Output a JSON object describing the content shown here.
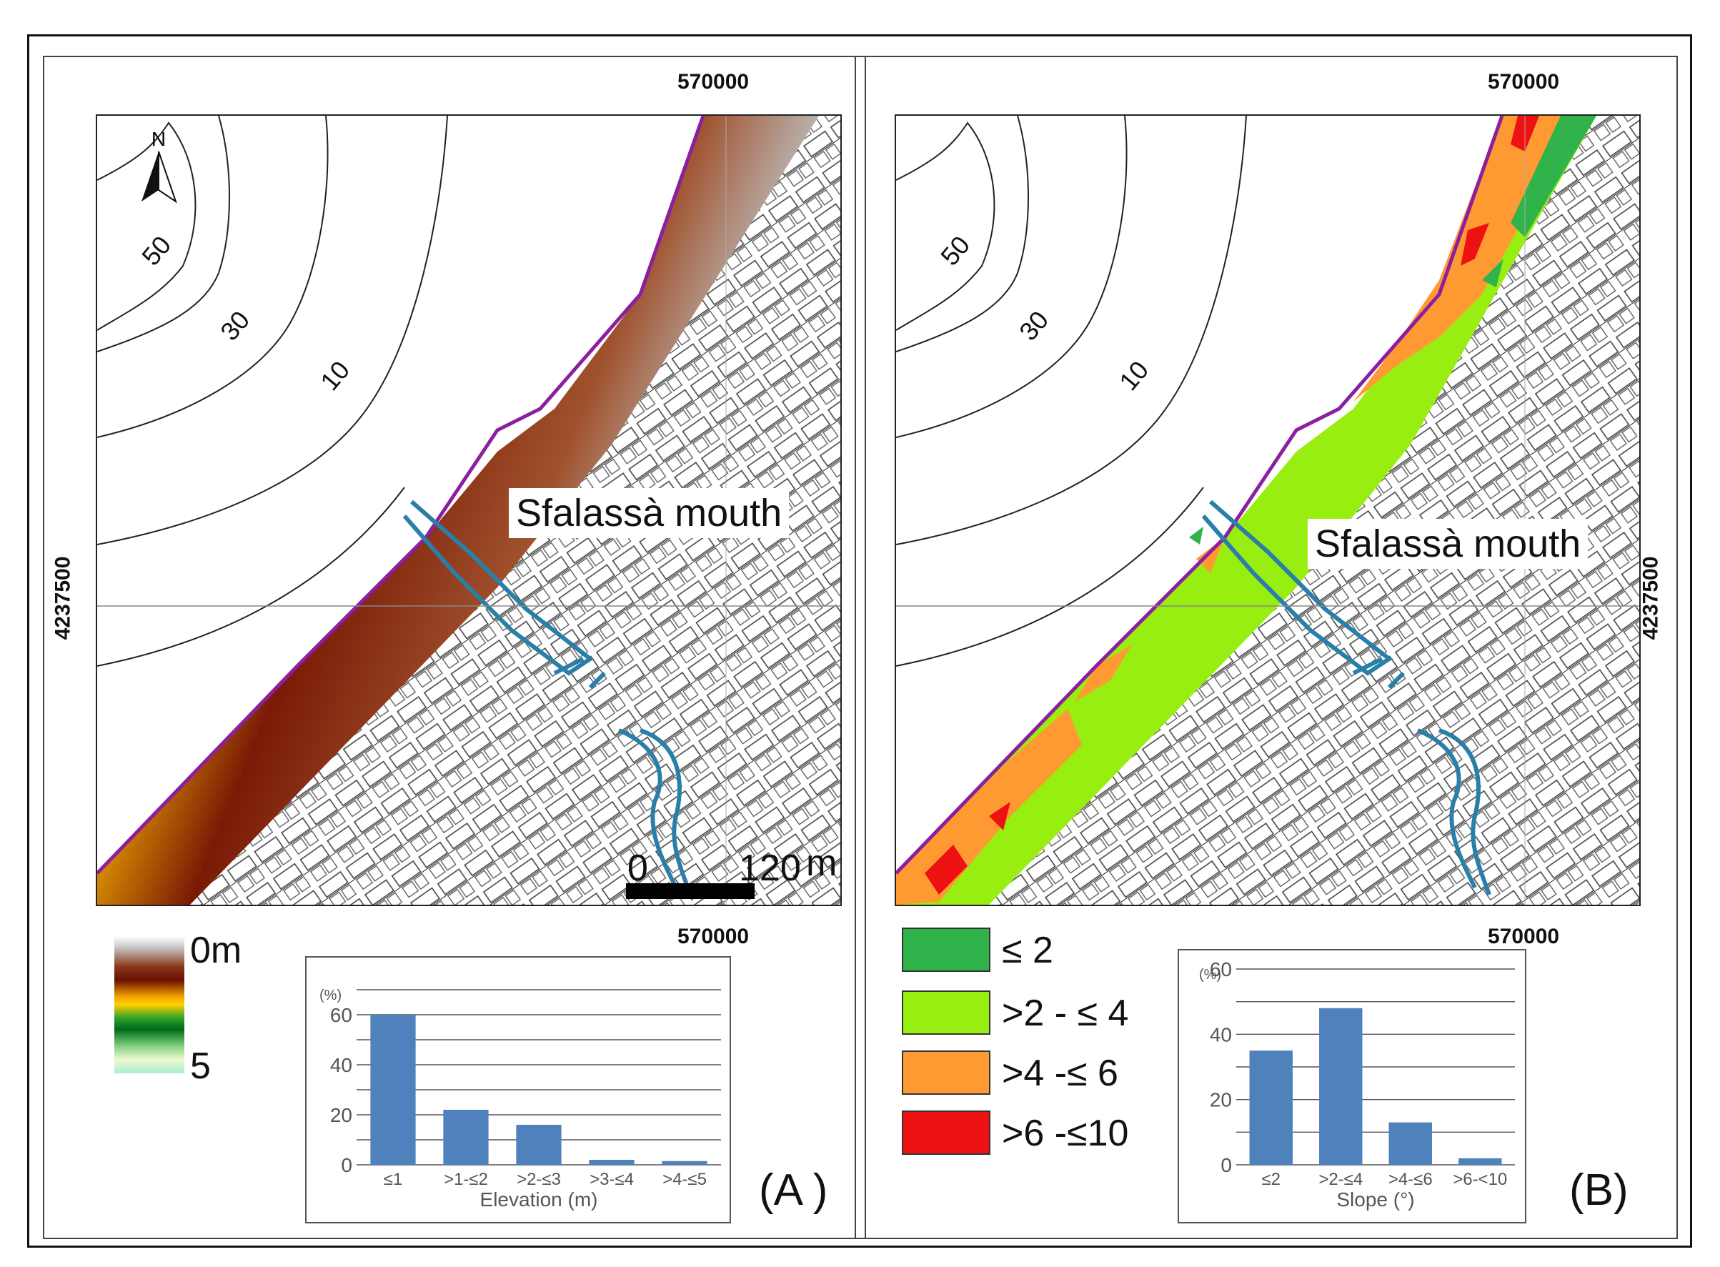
{
  "colors": {
    "coast_line": "#8b1fa0",
    "river": "#2a7fa8",
    "bar": "#4f81bd",
    "slope_le2": "#2fb34a",
    "slope_2_4": "#99ee11",
    "slope_4_6": "#ff9a33",
    "slope_6_10": "#ee1111"
  },
  "panel_a": {
    "label": "(A )",
    "coord_top": "570000",
    "coord_bottom": "570000",
    "coord_left": "4237500",
    "mouth_label": "Sfalassà mouth",
    "contours": [
      "50",
      "30",
      "10"
    ],
    "north_label": "N",
    "scale": {
      "start": "0",
      "end": "120",
      "unit": "m"
    },
    "colorbar": {
      "top_label": "0m",
      "bottom_label": "5"
    },
    "chart_data": {
      "type": "bar",
      "title": "",
      "xlabel": "Elevation (m)",
      "ylabel": "(%)",
      "categories": [
        "≤1",
        ">1-≤2",
        ">2-≤3",
        ">3-≤4",
        ">4-≤5"
      ],
      "values": [
        60,
        22,
        16,
        2,
        1.5
      ],
      "ylim": [
        0,
        70
      ],
      "yticks": [
        "0",
        "20",
        "40",
        "60"
      ],
      "grid": true
    }
  },
  "panel_b": {
    "label": "(B)",
    "coord_top": "570000",
    "coord_bottom": "570000",
    "coord_right": "4237500",
    "mouth_label": "Sfalassà mouth",
    "contours": [
      "50",
      "30",
      "10"
    ],
    "legend": [
      {
        "label": "≤ 2",
        "color": "#2fb34a"
      },
      {
        "label": ">2 - ≤ 4",
        "color": "#99ee11"
      },
      {
        "label": ">4 -≤ 6",
        "color": "#ff9a33"
      },
      {
        "label": ">6 -≤10",
        "color": "#ee1111"
      }
    ],
    "chart_data": {
      "type": "bar",
      "title": "",
      "xlabel": "Slope (°)",
      "ylabel": "(%)",
      "categories": [
        "≤2",
        ">2-≤4",
        ">4-≤6",
        ">6-<10"
      ],
      "values": [
        35,
        48,
        13,
        2
      ],
      "ylim": [
        0,
        60
      ],
      "yticks": [
        "0",
        "20",
        "40",
        "60"
      ],
      "grid": true
    }
  }
}
